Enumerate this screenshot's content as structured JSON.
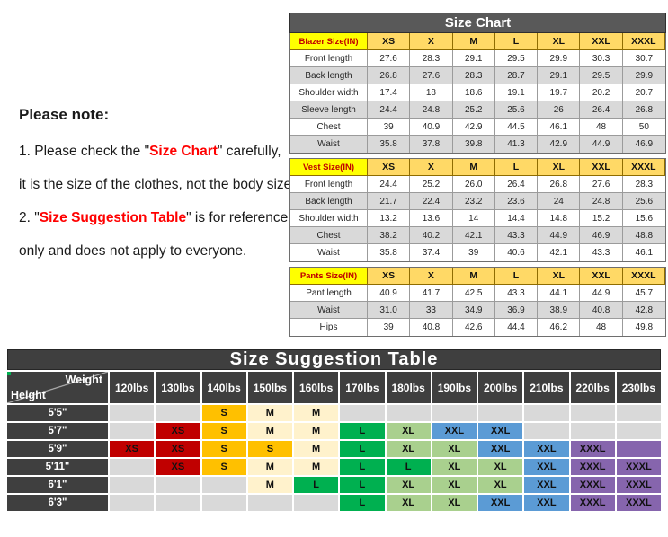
{
  "note": {
    "title": "Please note:",
    "lines": [
      [
        [
          "1. Please check the \"",
          false
        ],
        [
          "Size Chart",
          true
        ],
        [
          "\" carefully,",
          false
        ]
      ],
      [
        [
          "it is the size of the clothes, not the body size.",
          false
        ]
      ],
      [
        [
          "2. \"",
          false
        ],
        [
          "Size Suggestion Table",
          true
        ],
        [
          "\" is for reference",
          false
        ]
      ],
      [
        [
          "only and does not apply to everyone.",
          false
        ]
      ]
    ],
    "highlight_color": "#ff0000"
  },
  "size_chart": {
    "title": "Size Chart",
    "sizes": [
      "XS",
      "X",
      "M",
      "L",
      "XL",
      "XXL",
      "XXXL"
    ],
    "header_bg": "#ffd966",
    "label_bg": "#ffff00",
    "label_color": "#c00000",
    "title_bg": "#595959",
    "alt_row_bg": "#d9d9d9",
    "sections": [
      {
        "header": "Blazer Size(IN)",
        "rows": [
          {
            "label": "Front length",
            "values": [
              "27.6",
              "28.3",
              "29.1",
              "29.5",
              "29.9",
              "30.3",
              "30.7"
            ]
          },
          {
            "label": "Back length",
            "values": [
              "26.8",
              "27.6",
              "28.3",
              "28.7",
              "29.1",
              "29.5",
              "29.9"
            ]
          },
          {
            "label": "Shoulder width",
            "values": [
              "17.4",
              "18",
              "18.6",
              "19.1",
              "19.7",
              "20.2",
              "20.7"
            ]
          },
          {
            "label": "Sleeve length",
            "values": [
              "24.4",
              "24.8",
              "25.2",
              "25.6",
              "26",
              "26.4",
              "26.8"
            ]
          },
          {
            "label": "Chest",
            "values": [
              "39",
              "40.9",
              "42.9",
              "44.5",
              "46.1",
              "48",
              "50"
            ]
          },
          {
            "label": "Waist",
            "values": [
              "35.8",
              "37.8",
              "39.8",
              "41.3",
              "42.9",
              "44.9",
              "46.9"
            ]
          }
        ]
      },
      {
        "header": "Vest Size(IN)",
        "rows": [
          {
            "label": "Front length",
            "values": [
              "24.4",
              "25.2",
              "26.0",
              "26.4",
              "26.8",
              "27.6",
              "28.3"
            ]
          },
          {
            "label": "Back length",
            "values": [
              "21.7",
              "22.4",
              "23.2",
              "23.6",
              "24",
              "24.8",
              "25.6"
            ]
          },
          {
            "label": "Shoulder width",
            "values": [
              "13.2",
              "13.6",
              "14",
              "14.4",
              "14.8",
              "15.2",
              "15.6"
            ]
          },
          {
            "label": "Chest",
            "values": [
              "38.2",
              "40.2",
              "42.1",
              "43.3",
              "44.9",
              "46.9",
              "48.8"
            ]
          },
          {
            "label": "Waist",
            "values": [
              "35.8",
              "37.4",
              "39",
              "40.6",
              "42.1",
              "43.3",
              "46.1"
            ]
          }
        ]
      },
      {
        "header": "Pants Size(IN)",
        "rows": [
          {
            "label": "Pant length",
            "values": [
              "40.9",
              "41.7",
              "42.5",
              "43.3",
              "44.1",
              "44.9",
              "45.7"
            ]
          },
          {
            "label": "Waist",
            "values": [
              "31.0",
              "33",
              "34.9",
              "36.9",
              "38.9",
              "40.8",
              "42.8"
            ]
          },
          {
            "label": "Hips",
            "values": [
              "39",
              "40.8",
              "42.6",
              "44.4",
              "46.2",
              "48",
              "49.8"
            ]
          }
        ]
      }
    ]
  },
  "suggestion_table": {
    "title": "Size Suggestion Table",
    "corner": {
      "top": "Weight",
      "bottom": "Height"
    },
    "weights": [
      "120lbs",
      "130lbs",
      "140lbs",
      "150lbs",
      "160lbs",
      "170lbs",
      "180lbs",
      "190lbs",
      "200lbs",
      "210lbs",
      "220lbs",
      "230lbs"
    ],
    "size_colors": {
      "XS": "#c00000",
      "S": "#ffc000",
      "M": "#fff2cc",
      "L": "#00b050",
      "XL": "#a9d08e",
      "XXL": "#5b9bd5",
      "XXXL": "#8665ad",
      "empty": "#d9d9d9"
    },
    "header_bg": "#3f3f3f",
    "rows": [
      {
        "height": "5'5\"",
        "cells": [
          "",
          "",
          "S",
          "M",
          "M",
          "",
          "",
          "",
          "",
          "",
          "",
          ""
        ]
      },
      {
        "height": "5'7\"",
        "cells": [
          "",
          "XS",
          "S",
          "M",
          "M",
          "L",
          "XL",
          "XXL",
          "XXL",
          "",
          "",
          ""
        ]
      },
      {
        "height": "5'9\"",
        "cells": [
          "XS",
          "XS",
          "S",
          "S",
          "M",
          "L",
          "XL",
          "XL",
          "XXL",
          "XXL",
          "XXXL",
          {
            "text": "",
            "bg": "XXXL"
          }
        ]
      },
      {
        "height": "5'11\"",
        "cells": [
          "",
          "XS",
          "S",
          "M",
          "M",
          "L",
          "L",
          "XL",
          "XL",
          "XXL",
          "XXXL",
          "XXXL"
        ]
      },
      {
        "height": "6'1\"",
        "cells": [
          "",
          "",
          "",
          "M",
          "L",
          "L",
          "XL",
          "XL",
          "XL",
          "XXL",
          "XXXL",
          "XXXL"
        ]
      },
      {
        "height": "6'3\"",
        "cells": [
          "",
          "",
          "",
          "",
          "",
          "L",
          "XL",
          "XL",
          "XXL",
          "XXL",
          "XXXL",
          "XXXL"
        ]
      }
    ]
  }
}
